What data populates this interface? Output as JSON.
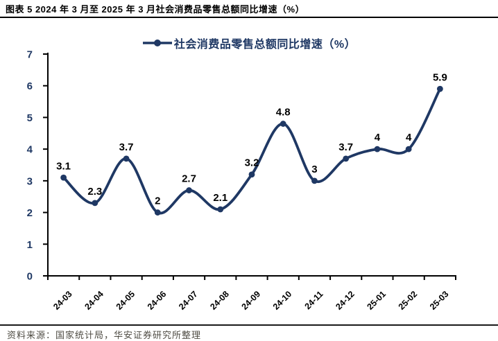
{
  "header": {
    "title": "图表 5 2024 年 3 月至 2025 年 3 月社会消费品零售总额同比增速（%）"
  },
  "legend": {
    "label": "社会消费品零售总额同比增速（%）"
  },
  "footer": {
    "source": "资料来源：国家统计局，华安证券研究所整理"
  },
  "colors": {
    "line": "#1F3864",
    "marker": "#1F3864",
    "axis": "#000000",
    "y_tick_label": "#1F3864",
    "x_tick_label": "#000000",
    "data_label": "#000000"
  },
  "chart_data": {
    "type": "line",
    "title": "社会消费品零售总额同比增速（%）",
    "categories": [
      "24-03",
      "24-04",
      "24-05",
      "24-06",
      "24-07",
      "24-08",
      "24-09",
      "24-10",
      "24-11",
      "24-12",
      "25-01",
      "25-02",
      "25-03"
    ],
    "values": [
      3.1,
      2.3,
      3.7,
      2,
      2.7,
      2.1,
      3.2,
      4.8,
      3,
      3.7,
      4,
      4,
      5.9
    ],
    "point_labels": [
      "3.1",
      "2.3",
      "3.7",
      "2",
      "2.7",
      "2.1",
      "3.2",
      "4.8",
      "3",
      "3.7",
      "4",
      "4",
      "5.9"
    ],
    "xlabel": "",
    "ylabel": "",
    "ylim": [
      0,
      7
    ],
    "yticks": [
      0,
      1,
      2,
      3,
      4,
      5,
      6,
      7
    ],
    "grid": false,
    "smooth": true,
    "markers": true,
    "legend_position": "top-center"
  }
}
